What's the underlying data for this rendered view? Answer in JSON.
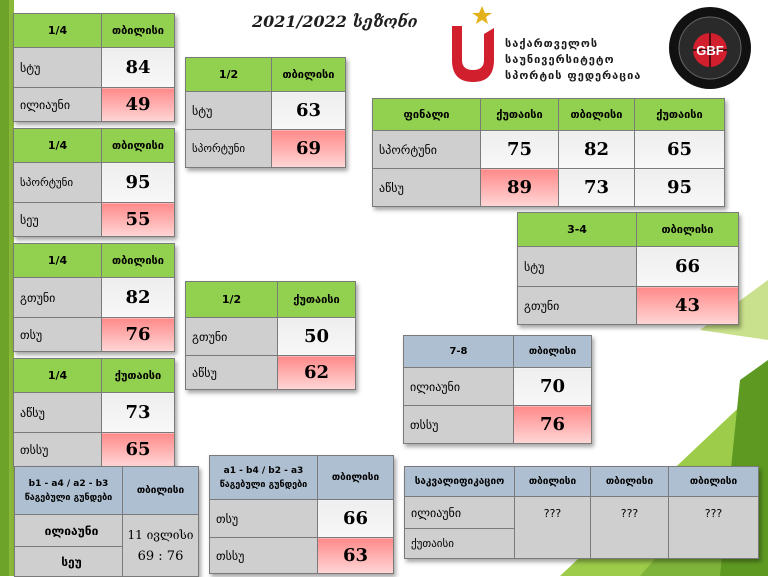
{
  "season_title": "2021/2022  სეზონი",
  "org": {
    "line1": "საქართველოს",
    "line2": "საუნივერსიტეტო",
    "line3": "სპორტის ფედერაცია",
    "colors": {
      "red": "#d11f2d",
      "star": "#e3b21a"
    }
  },
  "gbf_logo": {
    "text": "GBF"
  },
  "tables": {
    "q1": {
      "stage": "1/4",
      "city": "თბილისი",
      "team1": "სტუ",
      "score1": "84",
      "team2": "ილიაუნი",
      "score2": "49"
    },
    "q2": {
      "stage": "1/4",
      "city": "თბილისი",
      "team1": "სპორტუნი",
      "score1": "95",
      "team2": "სეუ",
      "score2": "55"
    },
    "q3": {
      "stage": "1/4",
      "city": "თბილისი",
      "team1": "გთუნი",
      "score1": "82",
      "team2": "თსუ",
      "score2": "76"
    },
    "q4": {
      "stage": "1/4",
      "city": "ქუთაისი",
      "team1": "აწსუ",
      "score1": "73",
      "team2": "თსსუ",
      "score2": "65"
    },
    "s1": {
      "stage": "1/2",
      "city": "თბილისი",
      "team1": "სტუ",
      "score1": "63",
      "team2": "სპორტუნი",
      "score2": "69"
    },
    "s2": {
      "stage": "1/2",
      "city": "ქუთაისი",
      "team1": "გთუნი",
      "score1": "50",
      "team2": "აწსუ",
      "score2": "62"
    },
    "final": {
      "stage": "ფინალი",
      "cities": [
        "ქუთაისი",
        "თბილისი",
        "ქუთაისი"
      ],
      "team1": "სპორტუნი",
      "scores1": [
        "75",
        "82",
        "65"
      ],
      "team2": "აწსუ",
      "scores2": [
        "89",
        "73",
        "95"
      ]
    },
    "third": {
      "stage": "3-4",
      "city": "თბილისი",
      "team1": "სტუ",
      "score1": "66",
      "team2": "გთუნი",
      "score2": "43"
    },
    "seventh": {
      "stage": "7-8",
      "city": "თბილისი",
      "team1": "ილიაუნი",
      "score1": "70",
      "team2": "თსსუ",
      "score2": "76"
    },
    "groupA": {
      "head1": "b1 - a4  / a2 - b3",
      "head2": "წაგებული გუნდები",
      "city": "თბილისი",
      "team1": "ილიაუნი",
      "team2": "სეუ",
      "date": "11 ივლისი",
      "score": "69 : 76"
    },
    "groupB": {
      "head1": "a1 - b4  / b2 - a3",
      "head2": "წაგებული გუნდები",
      "city": "თბილისი",
      "team1": "თსუ",
      "score1": "66",
      "team2": "თსსუ",
      "score2": "63"
    },
    "qual": {
      "stage": "საკვალიფიკაციო",
      "cities": [
        "თბილისი",
        "თბილისი",
        "თბილისი"
      ],
      "team1": "ილიაუნი",
      "team2": "ქუთაისი",
      "values": [
        "???",
        "???",
        "???"
      ]
    }
  }
}
